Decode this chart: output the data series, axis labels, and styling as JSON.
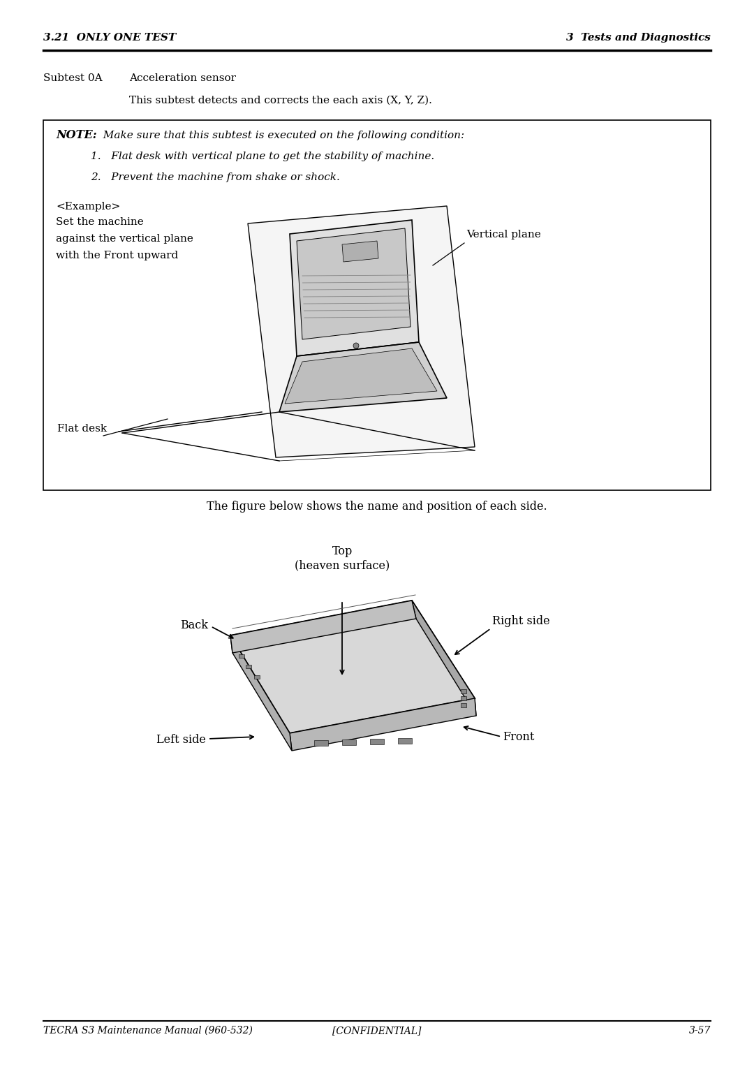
{
  "header_left": "3.21  ONLY ONE TEST",
  "header_right": "3  Tests and Diagnostics",
  "subtest_label": "Subtest 0A",
  "subtest_title": "Acceleration sensor",
  "subtest_desc": "This subtest detects and corrects the each axis (X, Y, Z).",
  "note_bold": "NOTE:",
  "note_text": "  Make sure that this subtest is executed on the following condition:",
  "note_item1": "1.   Flat desk with vertical plane to get the stability of machine.",
  "note_item2": "2.   Prevent the machine from shake or shock.",
  "example_label": "<Example>",
  "example_desc1": "Set the machine",
  "example_desc2": "against the vertical plane",
  "example_desc3": "with the Front upward",
  "label_vertical": "Vertical plane",
  "label_flat": "Flat desk",
  "figure_caption": "The figure below shows the name and position of each side.",
  "label_top": "Top\n(heaven surface)",
  "label_back": "Back",
  "label_right": "Right side",
  "label_left": "Left side",
  "label_front": "Front",
  "footer_left": "TECRA S3 Maintenance Manual (960-532)",
  "footer_center": "[CONFIDENTIAL]",
  "footer_right": "3-57",
  "bg_color": "#ffffff",
  "text_color": "#000000"
}
